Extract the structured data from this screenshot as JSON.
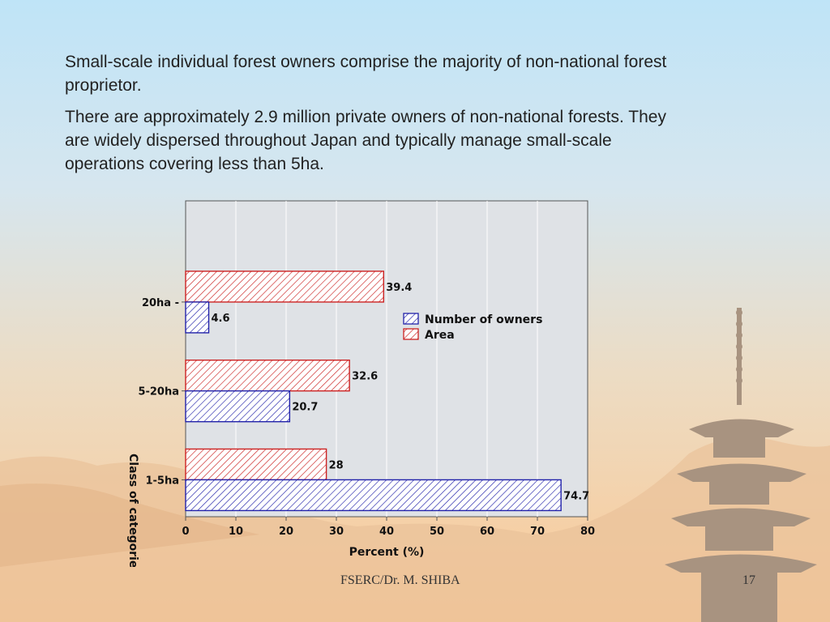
{
  "slide": {
    "paragraphs": [
      "Small-scale individual forest owners comprise the majority of non-national forest proprietor.",
      "There are approximately 2.9 million private owners of non-national forests. They are widely dispersed throughout Japan and typically manage small-scale operations covering less than 5ha."
    ],
    "footer_credit": "FSERC/Dr. M. SHIBA",
    "page_number": "17"
  },
  "chart_data": {
    "type": "bar",
    "orientation": "horizontal",
    "categories": [
      "20ha -",
      "5-20ha",
      "1-5ha"
    ],
    "series": [
      {
        "name": "Area",
        "values": [
          39.4,
          32.6,
          28
        ],
        "labels": [
          "39.4",
          "32.6",
          "28"
        ],
        "color": "#cc2222"
      },
      {
        "name": "Number of owners",
        "values": [
          4.6,
          20.7,
          74.7
        ],
        "labels": [
          "4.6",
          "20.7",
          "74.7"
        ],
        "color": "#2222aa"
      }
    ],
    "xlabel": "Percent (%)",
    "ylabel": "Class of categorie",
    "xlim": [
      0,
      80
    ],
    "xticks": [
      "0",
      "10",
      "20",
      "30",
      "40",
      "50",
      "60",
      "70",
      "80"
    ],
    "legend": [
      "Number of owners",
      "Area"
    ],
    "legend_position": "center-right",
    "grid": true
  }
}
